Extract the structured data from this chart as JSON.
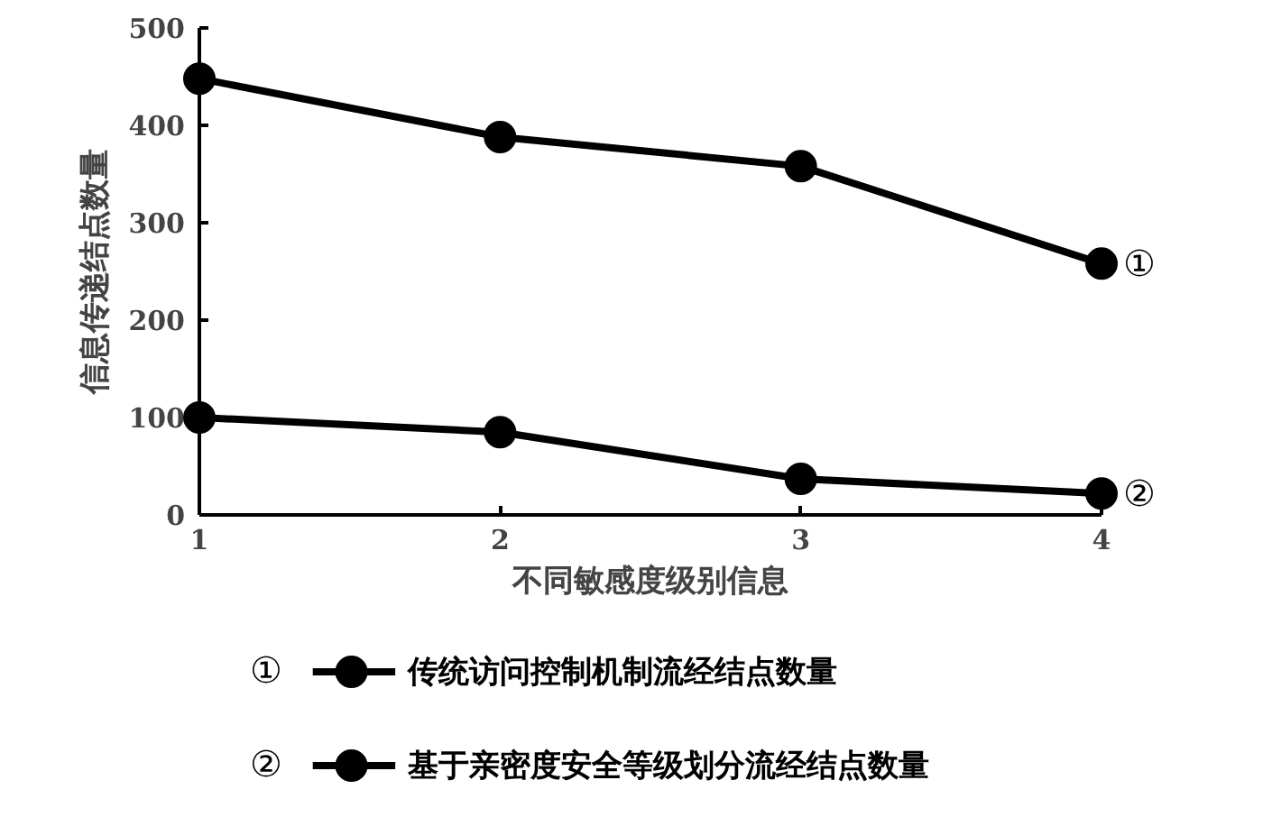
{
  "chart_data": {
    "type": "line",
    "xlabel": "不同敏感度级别信息",
    "ylabel": "信息传递结点数量",
    "x": [
      1,
      2,
      3,
      4
    ],
    "xlim": [
      1,
      4
    ],
    "xticks": [
      1,
      2,
      3,
      4
    ],
    "ylim": [
      0,
      500
    ],
    "yticks": [
      0,
      100,
      200,
      300,
      400,
      500
    ],
    "grid": false,
    "marker": "circle",
    "line_style": "solid",
    "legend": "bottom",
    "series": [
      {
        "name": "传统访问控制机制流经结点数量",
        "color": "#000000",
        "values": [
          448,
          388,
          358,
          258
        ]
      },
      {
        "name": "基于亲密度安全等级划分流经结点数量",
        "color": "#000000",
        "values": [
          100,
          85,
          37,
          22
        ]
      }
    ],
    "annotations": [
      "①",
      "②"
    ]
  }
}
